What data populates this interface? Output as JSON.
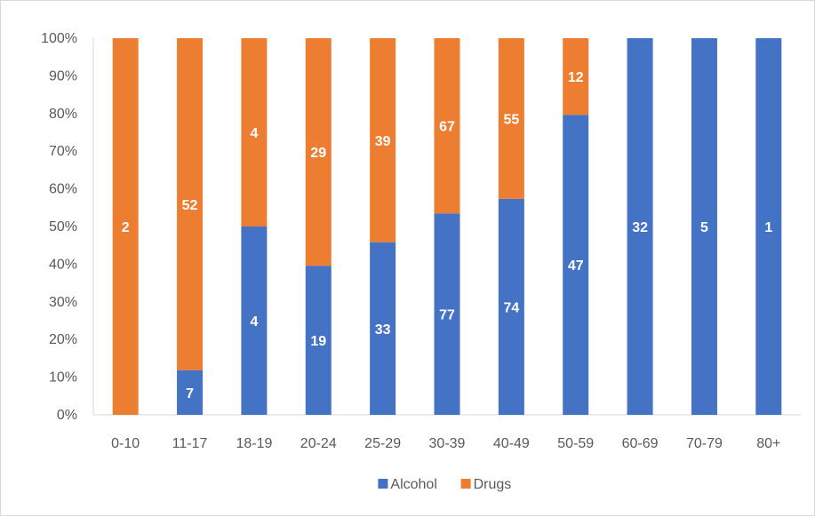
{
  "chart_data": {
    "type": "bar",
    "stacked": "percent",
    "categories": [
      "0-10",
      "11-17",
      "18-19",
      "20-24",
      "25-29",
      "30-39",
      "40-49",
      "50-59",
      "60-69",
      "70-79",
      "80+"
    ],
    "series": [
      {
        "name": "Alcohol",
        "color": "#4472c4",
        "values": [
          0,
          7,
          4,
          19,
          33,
          77,
          74,
          47,
          32,
          5,
          1
        ]
      },
      {
        "name": "Drugs",
        "color": "#ed7d31",
        "values": [
          2,
          52,
          4,
          29,
          39,
          67,
          55,
          12,
          0,
          0,
          0
        ]
      }
    ],
    "yticks": [
      "0%",
      "10%",
      "20%",
      "30%",
      "40%",
      "50%",
      "60%",
      "70%",
      "80%",
      "90%",
      "100%"
    ],
    "ylim": [
      0,
      100
    ],
    "legend_position": "bottom",
    "grid": false
  }
}
